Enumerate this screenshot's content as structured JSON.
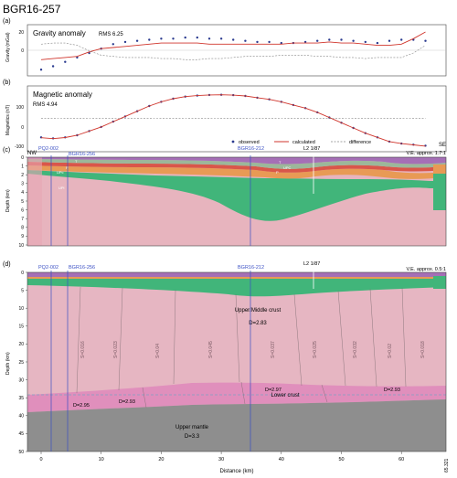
{
  "figure": {
    "title": "BGR16-257"
  },
  "panel_a": {
    "label": "(a)",
    "title": "Gravity anomaly",
    "rms": "RMS 6.25",
    "ylabel": "Gravity (mGal)",
    "yticks": [
      "0",
      "20"
    ]
  },
  "panel_b": {
    "label": "(b)",
    "title": "Magnetic anomaly",
    "rms": "RMS 4.94",
    "ylabel": "Magnetics (nT)",
    "yticks": [
      "0",
      "100",
      "-100"
    ],
    "legend": {
      "observed": "observed",
      "calculated": "calculated",
      "difference": "difference"
    }
  },
  "panel_c": {
    "label": "(c)",
    "nw": "NW",
    "se": "SE",
    "ve": "V.E. approx. 1.7:1",
    "ylabel": "Depth (km)",
    "yticks": [
      "0",
      "1",
      "2",
      "3",
      "4",
      "5",
      "6",
      "7",
      "8",
      "9",
      "10"
    ],
    "profiles": [
      "PQ2-002",
      "BGR16-256",
      "BGR16-212",
      "L2 1/87"
    ],
    "layer_tags": [
      "T",
      "P",
      "UPc",
      "T",
      "UPC",
      "P",
      "UPl"
    ]
  },
  "panel_d": {
    "label": "(d)",
    "ve": "V.E. approx. 0.5:1",
    "ylabel": "Depth (km)",
    "xlabel": "Distance (km)",
    "yticks": [
      "0",
      "5",
      "10",
      "15",
      "20",
      "25",
      "30",
      "35",
      "40",
      "45",
      "50"
    ],
    "xticks": [
      "0",
      "10",
      "20",
      "30",
      "40",
      "50",
      "60"
    ],
    "xend_label": "65.321",
    "profiles": [
      "PQ2-002",
      "BGR16-256",
      "BGR16-212",
      "L2 1/87"
    ],
    "upper_crust": "Upper/Middle crust",
    "upper_crust_density": "D=2.83",
    "lower_crust": "Lower crust",
    "upper_mantle": "Upper mantle",
    "upper_mantle_density": "D=3.3",
    "densities": [
      "D=2.95",
      "D=2.93",
      "D=2.97",
      "D=2.93"
    ],
    "susceptibilities": [
      "S=0.016",
      "S=0.023",
      "S=0.04",
      "S=0.045",
      "S=0.037",
      "S=0.025",
      "S=0.032",
      "S=0.02",
      "S=0.018"
    ]
  },
  "chart_data": [
    {
      "type": "scatter",
      "title": "Gravity anomaly",
      "ylabel": "Gravity (mGal)",
      "xlim": [
        -1,
        65.3
      ],
      "ylim": [
        -18,
        25
      ],
      "series": [
        {
          "name": "observed",
          "x": [
            0,
            2,
            4,
            6,
            8,
            10,
            12,
            14,
            16,
            18,
            20,
            22,
            24,
            26,
            28,
            30,
            32,
            34,
            36,
            38,
            40,
            42,
            44,
            46,
            48,
            50,
            52,
            54,
            56,
            58,
            60,
            62,
            64
          ],
          "y": [
            -14,
            -11,
            -7,
            -3,
            1,
            5,
            9,
            11,
            12,
            13,
            14,
            14,
            15,
            15,
            14,
            14,
            13,
            12,
            11,
            11,
            10,
            10,
            11,
            12,
            13,
            13,
            12,
            11,
            10,
            12,
            13,
            13,
            12
          ]
        },
        {
          "name": "calculated",
          "x": [
            0,
            2,
            4,
            6,
            8,
            10,
            12,
            14,
            16,
            18,
            20,
            22,
            24,
            26,
            28,
            30,
            32,
            34,
            36,
            38,
            40,
            42,
            44,
            46,
            48,
            50,
            52,
            54,
            56,
            58,
            60,
            62,
            64
          ],
          "y": [
            -5,
            -4,
            -3,
            -2,
            2,
            5,
            6,
            7,
            8,
            9,
            10,
            10,
            10,
            10,
            9,
            9,
            9,
            9,
            9,
            9,
            9,
            10,
            10,
            10,
            11,
            10,
            10,
            9,
            8,
            8,
            9,
            14,
            20
          ]
        },
        {
          "name": "difference",
          "x": [
            0,
            2,
            4,
            6,
            8,
            10,
            12,
            14,
            16,
            18,
            20,
            22,
            24,
            26,
            28,
            30,
            32,
            34,
            36,
            38,
            40,
            42,
            44,
            46,
            48,
            50,
            52,
            54,
            56,
            58,
            60,
            62,
            64
          ],
          "y": [
            9,
            10,
            10,
            8,
            3,
            -1,
            -2,
            -3,
            -3,
            -3,
            -4,
            -4,
            -5,
            -5,
            -4,
            -4,
            -3,
            -2,
            -2,
            -2,
            -1,
            -1,
            -1,
            -2,
            -2,
            -3,
            -3,
            -4,
            -3,
            -3,
            -3,
            1,
            8
          ]
        }
      ]
    },
    {
      "type": "scatter",
      "title": "Magnetic anomaly",
      "ylabel": "Magnetics (nT)",
      "xlim": [
        -1,
        65.3
      ],
      "ylim": [
        -150,
        130
      ],
      "series": [
        {
          "name": "observed",
          "x": [
            0,
            2,
            4,
            6,
            8,
            10,
            12,
            14,
            16,
            18,
            20,
            22,
            24,
            26,
            28,
            30,
            32,
            34,
            36,
            38,
            40,
            42,
            44,
            46,
            48,
            50,
            52,
            54,
            56,
            58,
            60,
            62,
            64
          ],
          "y": [
            -90,
            -95,
            -90,
            -80,
            -60,
            -40,
            -15,
            10,
            35,
            60,
            80,
            95,
            105,
            110,
            113,
            114,
            112,
            108,
            100,
            92,
            80,
            65,
            50,
            30,
            5,
            -20,
            -45,
            -70,
            -90,
            -110,
            -120,
            -125,
            -130
          ]
        },
        {
          "name": "calculated",
          "x": [
            0,
            2,
            4,
            6,
            8,
            10,
            12,
            14,
            16,
            18,
            20,
            22,
            24,
            26,
            28,
            30,
            32,
            34,
            36,
            38,
            40,
            42,
            44,
            46,
            48,
            50,
            52,
            54,
            56,
            58,
            60,
            62,
            64
          ],
          "y": [
            -92,
            -96,
            -91,
            -80,
            -60,
            -40,
            -15,
            10,
            35,
            60,
            80,
            95,
            105,
            110,
            113,
            114,
            112,
            108,
            100,
            92,
            80,
            65,
            50,
            30,
            5,
            -20,
            -45,
            -70,
            -90,
            -110,
            -120,
            -126,
            -132
          ]
        },
        {
          "name": "difference",
          "x": [
            0,
            8,
            16,
            24,
            32,
            40,
            48,
            56,
            64
          ],
          "y": [
            2,
            1,
            0,
            1,
            0,
            1,
            0,
            1,
            2
          ]
        }
      ]
    }
  ]
}
